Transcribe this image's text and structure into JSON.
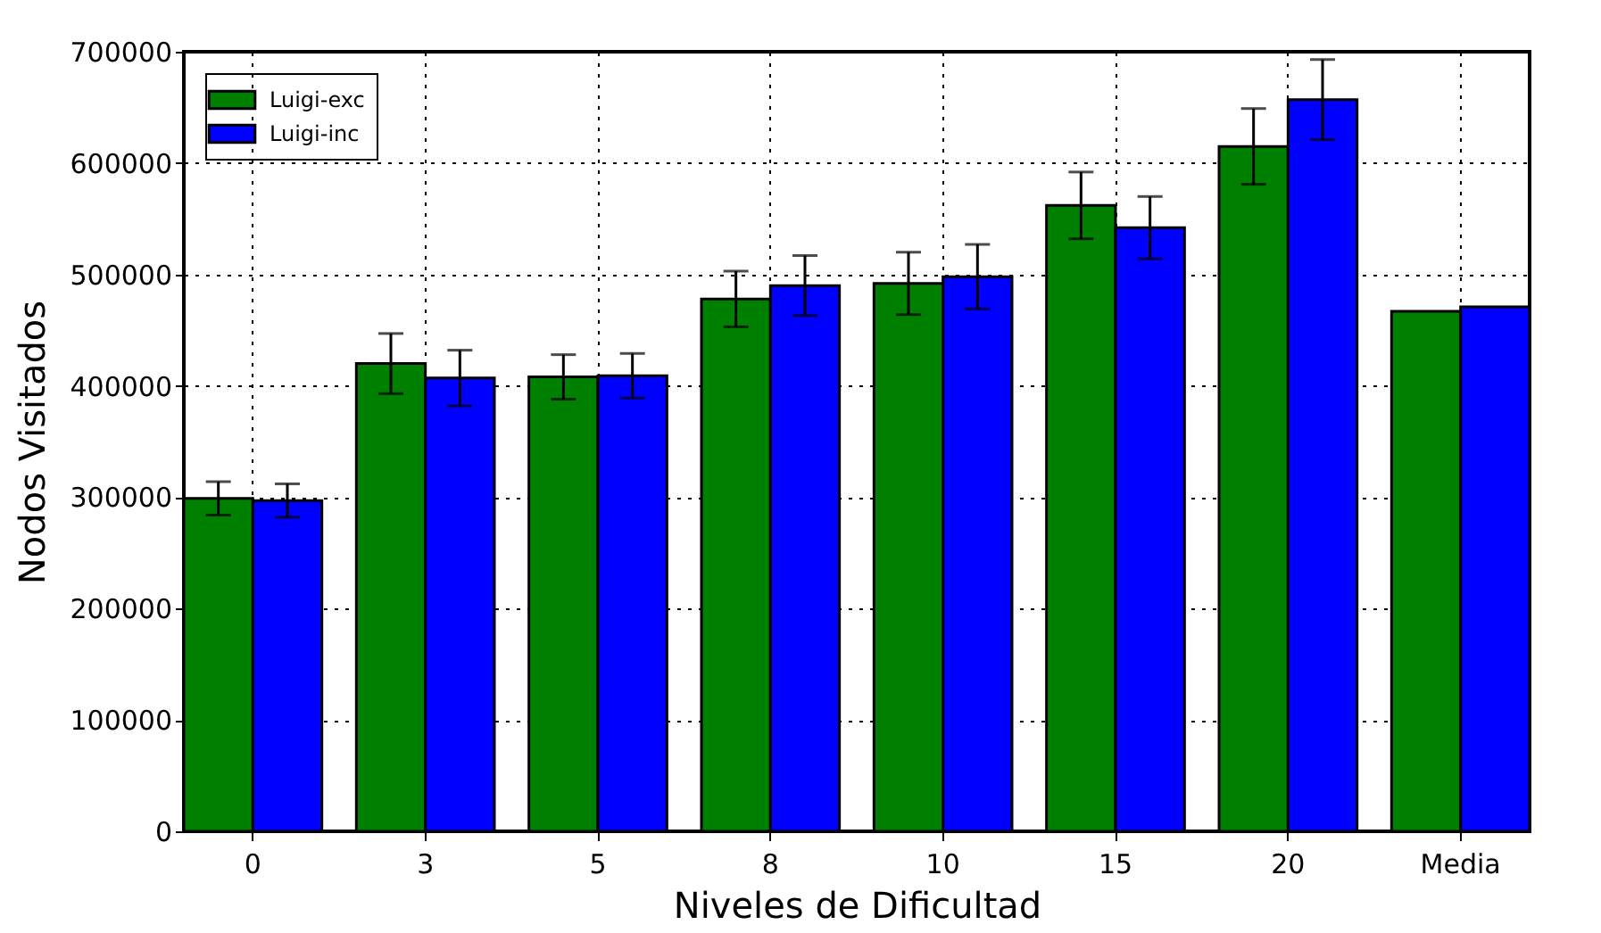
{
  "chart_data": {
    "type": "bar",
    "xlabel": "Niveles de Dificultad",
    "ylabel": "Nodos Visitados",
    "categories": [
      "0",
      "3",
      "5",
      "8",
      "10",
      "15",
      "20",
      "Media"
    ],
    "series": [
      {
        "name": "Luigi-exc",
        "color": "#008000",
        "values": [
          299000,
          420000,
          408000,
          478000,
          492000,
          562000,
          615000,
          467000
        ],
        "errors": [
          15000,
          27000,
          20000,
          25000,
          28000,
          30000,
          34000,
          null
        ]
      },
      {
        "name": "Luigi-inc",
        "color": "#0000ff",
        "values": [
          297000,
          407000,
          409000,
          490000,
          498000,
          542000,
          657000,
          471000
        ],
        "errors": [
          15000,
          25000,
          20000,
          27000,
          29000,
          28000,
          36000,
          null
        ]
      }
    ],
    "ylim": [
      0,
      700000
    ],
    "yticks": [
      0,
      100000,
      200000,
      300000,
      400000,
      500000,
      600000,
      700000
    ],
    "grid": true,
    "legend": "top left"
  }
}
